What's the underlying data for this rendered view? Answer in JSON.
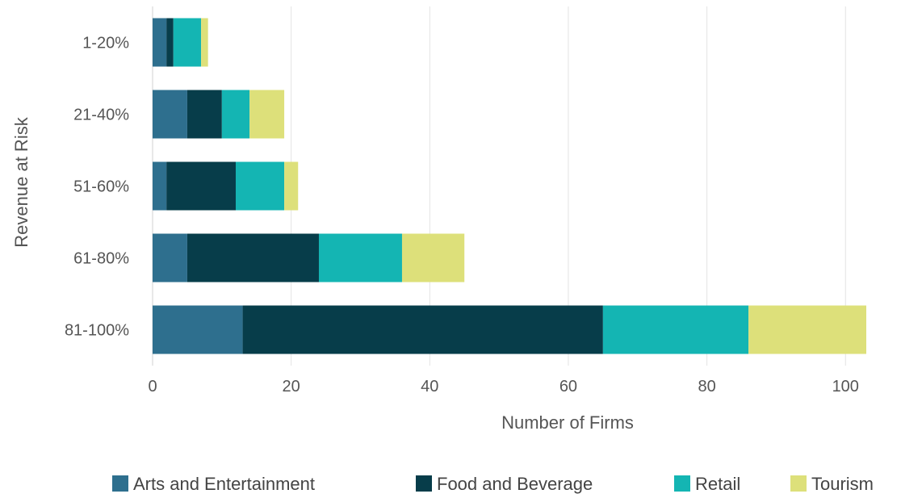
{
  "chart_data": {
    "type": "bar",
    "orientation": "horizontal",
    "stacked": true,
    "categories": [
      "1-20%",
      "21-40%",
      "51-60%",
      "61-80%",
      "81-100%"
    ],
    "series": [
      {
        "name": "Arts and Entertainment",
        "color": "#2e6f8e",
        "values": [
          2,
          5,
          2,
          5,
          13
        ]
      },
      {
        "name": "Food and Beverage",
        "color": "#073d4a",
        "values": [
          1,
          5,
          10,
          19,
          52
        ]
      },
      {
        "name": "Retail",
        "color": "#14b5b3",
        "values": [
          4,
          4,
          7,
          12,
          21
        ]
      },
      {
        "name": "Tourism",
        "color": "#dde07a",
        "values": [
          1,
          5,
          2,
          9,
          17
        ]
      }
    ],
    "xlabel": "Number of Firms",
    "ylabel": "Revenue at Risk",
    "xlim": [
      0,
      103
    ],
    "xticks": [
      0,
      20,
      40,
      60,
      80,
      100
    ],
    "grid": "vertical",
    "legend": "bottom"
  }
}
